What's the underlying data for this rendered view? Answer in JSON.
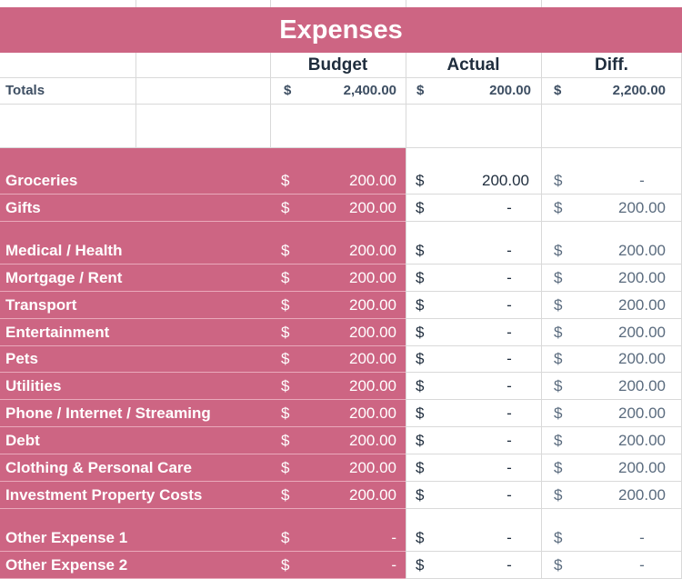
{
  "title": "Expenses",
  "headers": {
    "budget": "Budget",
    "actual": "Actual",
    "diff": "Diff."
  },
  "totals": {
    "label": "Totals",
    "budget_sym": "$",
    "budget": "2,400.00",
    "actual_sym": "$",
    "actual": "200.00",
    "diff_sym": "$",
    "diff": "2,200.00"
  },
  "rows": [
    {
      "label": "Groceries",
      "bsym": "$",
      "budget": "200.00",
      "asym": "$",
      "actual": "200.00",
      "dsym": "$",
      "diff": "-"
    },
    {
      "label": "Gifts",
      "bsym": "$",
      "budget": "200.00",
      "asym": "$",
      "actual": "-",
      "dsym": "$",
      "diff": "200.00"
    },
    {
      "label": "Medical / Health",
      "bsym": "$",
      "budget": "200.00",
      "asym": "$",
      "actual": "-",
      "dsym": "$",
      "diff": "200.00"
    },
    {
      "label": "Mortgage / Rent",
      "bsym": "$",
      "budget": "200.00",
      "asym": "$",
      "actual": "-",
      "dsym": "$",
      "diff": "200.00"
    },
    {
      "label": "Transport",
      "bsym": "$",
      "budget": "200.00",
      "asym": "$",
      "actual": "-",
      "dsym": "$",
      "diff": "200.00"
    },
    {
      "label": "Entertainment",
      "bsym": "$",
      "budget": "200.00",
      "asym": "$",
      "actual": "-",
      "dsym": "$",
      "diff": "200.00"
    },
    {
      "label": "Pets",
      "bsym": "$",
      "budget": "200.00",
      "asym": "$",
      "actual": "-",
      "dsym": "$",
      "diff": "200.00"
    },
    {
      "label": "Utilities",
      "bsym": "$",
      "budget": "200.00",
      "asym": "$",
      "actual": "-",
      "dsym": "$",
      "diff": "200.00"
    },
    {
      "label": "Phone / Internet / Streaming",
      "bsym": "$",
      "budget": "200.00",
      "asym": "$",
      "actual": "-",
      "dsym": "$",
      "diff": "200.00"
    },
    {
      "label": "Debt",
      "bsym": "$",
      "budget": "200.00",
      "asym": "$",
      "actual": "-",
      "dsym": "$",
      "diff": "200.00"
    },
    {
      "label": "Clothing & Personal Care",
      "bsym": "$",
      "budget": "200.00",
      "asym": "$",
      "actual": "-",
      "dsym": "$",
      "diff": "200.00"
    },
    {
      "label": "Investment Property Costs",
      "bsym": "$",
      "budget": "200.00",
      "asym": "$",
      "actual": "-",
      "dsym": "$",
      "diff": "200.00"
    },
    {
      "label": "Other Expense 1",
      "bsym": "$",
      "budget": "-",
      "asym": "$",
      "actual": "-",
      "dsym": "$",
      "diff": "-"
    },
    {
      "label": "Other Expense 2",
      "bsym": "$",
      "budget": "-",
      "asym": "$",
      "actual": "-",
      "dsym": "$",
      "diff": "-"
    }
  ]
}
